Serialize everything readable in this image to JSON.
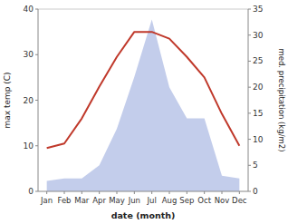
{
  "chart_data": {
    "type": "line",
    "categories": [
      "Jan",
      "Feb",
      "Mar",
      "Apr",
      "May",
      "Jun",
      "Jul",
      "Aug",
      "Sep",
      "Oct",
      "Nov",
      "Dec"
    ],
    "xlabel": "date (month)",
    "ylabel": "max temp (C)",
    "y2label": "med. precipitation (kg/m2)",
    "ylim": [
      0,
      40
    ],
    "yticks": [
      0,
      10,
      20,
      30,
      40
    ],
    "y2lim": [
      0,
      35
    ],
    "y2ticks": [
      0,
      5,
      10,
      15,
      20,
      25,
      30,
      35
    ],
    "grid": false,
    "series": [
      {
        "type": "area",
        "axis": "y2",
        "color": "#b8c4e8",
        "values": [
          2.0,
          2.5,
          2.5,
          5.0,
          12.0,
          22.0,
          33.0,
          20.0,
          14.0,
          14.0,
          3.0,
          2.5
        ]
      },
      {
        "type": "line",
        "color": "#c0392b",
        "values": [
          9.5,
          10.5,
          16.0,
          23.0,
          29.5,
          35.0,
          35.0,
          33.5,
          29.5,
          25.0,
          17.0,
          10.0
        ]
      }
    ]
  }
}
